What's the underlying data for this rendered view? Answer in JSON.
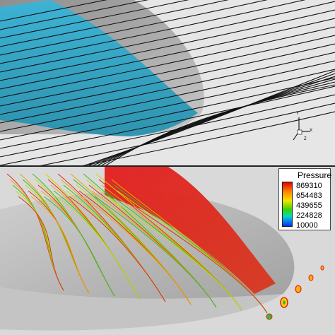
{
  "top_view": {
    "axis_labels": [
      "Y",
      "X",
      "Z"
    ]
  },
  "bottom_view": {
    "legend": {
      "title": "Pressure",
      "values": [
        "869310",
        "654483",
        "439655",
        "224828",
        "10000"
      ]
    }
  },
  "colors": {
    "blue_surface": "#33b6dc",
    "gray_body": "#b9b9b9",
    "red_region": "#e31e1e",
    "streamline_black": "#111111",
    "streamline_green": "#2fbd2f",
    "streamline_red": "#df2b1b"
  }
}
